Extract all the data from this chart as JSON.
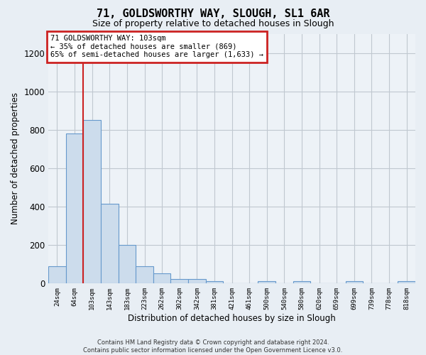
{
  "title": "71, GOLDSWORTHY WAY, SLOUGH, SL1 6AR",
  "subtitle": "Size of property relative to detached houses in Slough",
  "xlabel": "Distribution of detached houses by size in Slough",
  "ylabel": "Number of detached properties",
  "footer_line1": "Contains HM Land Registry data © Crown copyright and database right 2024.",
  "footer_line2": "Contains public sector information licensed under the Open Government Licence v3.0.",
  "annotation_line1": "71 GOLDSWORTHY WAY: 103sqm",
  "annotation_line2": "← 35% of detached houses are smaller (869)",
  "annotation_line3": "65% of semi-detached houses are larger (1,633) →",
  "bar_labels": [
    "24sqm",
    "64sqm",
    "103sqm",
    "143sqm",
    "183sqm",
    "223sqm",
    "262sqm",
    "302sqm",
    "342sqm",
    "381sqm",
    "421sqm",
    "461sqm",
    "500sqm",
    "540sqm",
    "580sqm",
    "620sqm",
    "659sqm",
    "699sqm",
    "739sqm",
    "778sqm",
    "818sqm"
  ],
  "bar_values": [
    90,
    780,
    850,
    415,
    200,
    90,
    52,
    22,
    22,
    14,
    0,
    0,
    14,
    0,
    14,
    0,
    0,
    12,
    0,
    0,
    12
  ],
  "bar_color": "#ccdcec",
  "bar_edge_color": "#6699cc",
  "highlight_bar_index": 2,
  "highlight_color": "#cc2222",
  "ylim": [
    0,
    1300
  ],
  "yticks": [
    0,
    200,
    400,
    600,
    800,
    1000,
    1200
  ],
  "bg_color": "#e8eef4",
  "plot_bg_color": "#edf2f7",
  "grid_color": "#c0c8d0",
  "annotation_box_color": "#cc2222",
  "annotation_bg": "#ffffff",
  "title_fontsize": 11,
  "subtitle_fontsize": 9
}
